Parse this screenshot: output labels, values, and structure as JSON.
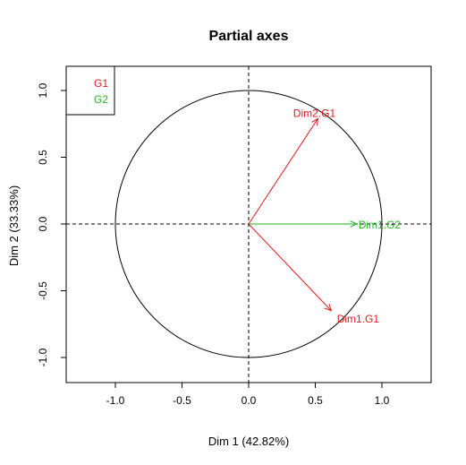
{
  "chart_data": {
    "type": "scatter",
    "title": "Partial axes",
    "xlabel": "Dim 1 (42.82%)",
    "ylabel": "Dim 2 (33.33%)",
    "xlim": [
      -1.35,
      1.38
    ],
    "ylim": [
      -1.19,
      1.18
    ],
    "xticks": [
      -1.0,
      -0.5,
      0.0,
      0.5,
      1.0
    ],
    "xtick_labels": [
      "-1.0",
      "-0.5",
      "0.0",
      "0.5",
      "1.0"
    ],
    "yticks": [
      -1.0,
      -0.5,
      0.0,
      0.5,
      1.0
    ],
    "ytick_labels": [
      "-1.0",
      "-0.5",
      "0.0",
      "0.5",
      "1.0"
    ],
    "grid": false,
    "unit_circle": true,
    "reference_lines": [
      0,
      0
    ],
    "legend": {
      "position": "top-left",
      "entries": [
        {
          "label": "G1",
          "color": "#e31a1c"
        },
        {
          "label": "G2",
          "color": "#22b222"
        }
      ]
    },
    "arrows": [
      {
        "label": "Dim2.G1",
        "group": "G1",
        "x": 0.52,
        "y": 0.79,
        "color": "#e31a1c"
      },
      {
        "label": "Dim1.G2",
        "group": "G2",
        "x": 0.81,
        "y": 0.0,
        "color": "#22b222"
      },
      {
        "label": "Dim1.G1",
        "group": "G1",
        "x": 0.62,
        "y": -0.65,
        "color": "#e31a1c"
      }
    ]
  }
}
